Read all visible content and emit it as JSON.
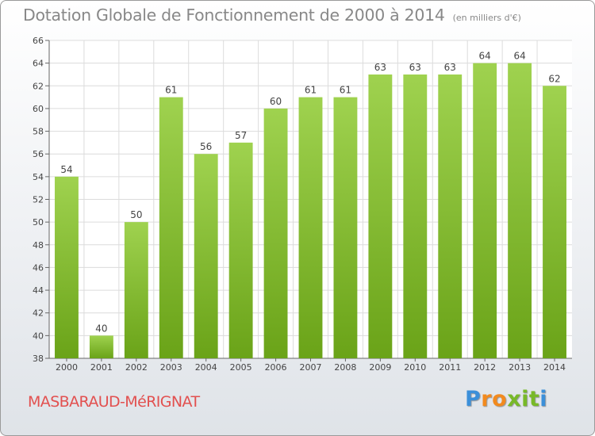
{
  "chart_data": {
    "type": "bar",
    "title": "Dotation Globale de Fonctionnement de 2000 à 2014",
    "subtitle": "(en milliers d'€)",
    "categories": [
      "2000",
      "2001",
      "2002",
      "2003",
      "2004",
      "2005",
      "2006",
      "2007",
      "2008",
      "2009",
      "2010",
      "2011",
      "2012",
      "2013",
      "2014"
    ],
    "values": [
      54,
      40,
      50,
      61,
      56,
      57,
      60,
      61,
      61,
      63,
      63,
      63,
      64,
      64,
      62
    ],
    "ylim": [
      38,
      66
    ],
    "yticks": [
      38,
      40,
      42,
      44,
      46,
      48,
      50,
      52,
      54,
      56,
      58,
      60,
      62,
      64,
      66
    ],
    "grid": true,
    "bar_color": "#8dc63f",
    "legend": "none"
  },
  "footer": {
    "city": "MASBARAUD-MéRIGNAT",
    "city_color": "#e2504f"
  },
  "logo": {
    "letters": [
      "P",
      "r",
      "o",
      "x",
      "i",
      "t",
      "i"
    ],
    "colors": [
      "#3b8fd9",
      "#f28a1e",
      "#f28a1e",
      "#78b928",
      "#78b928",
      "#78b928",
      "#3b8fd9"
    ]
  }
}
